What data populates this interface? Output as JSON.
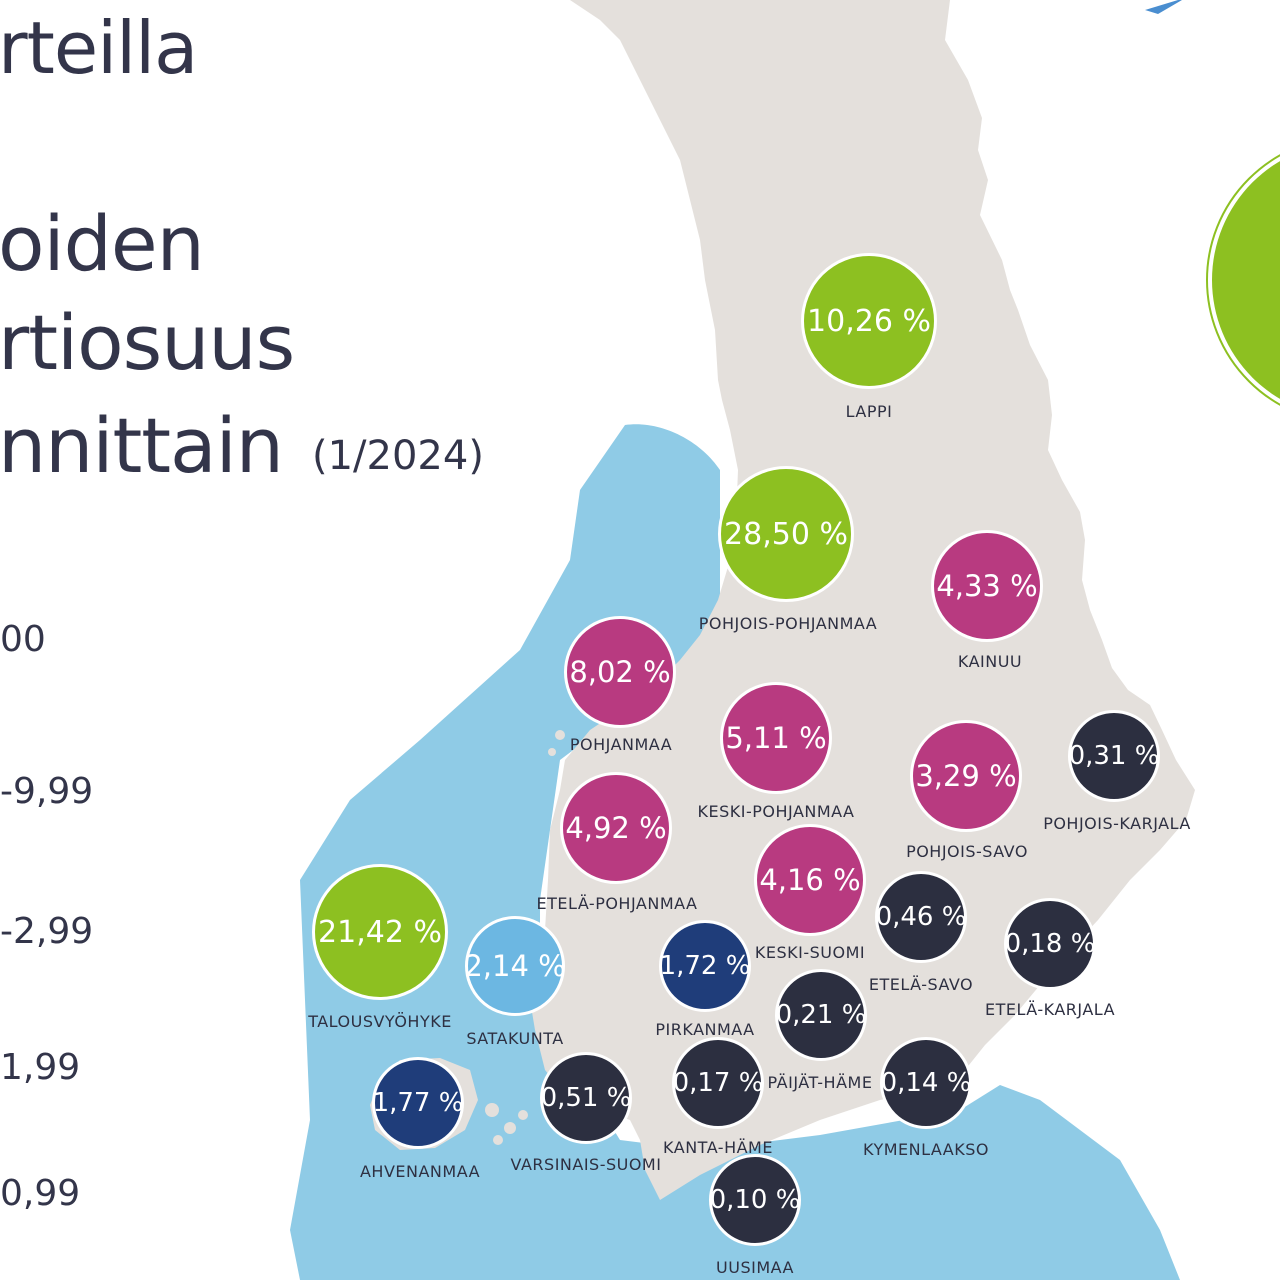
{
  "title": {
    "line1": "rteilla",
    "line2": "oiden",
    "line3": "rtiosuus",
    "line4": "nnittain",
    "date": "(1/2024)"
  },
  "legend": [
    "00",
    "-9,99",
    "-2,99",
    "1,99",
    "0,99"
  ],
  "colors": {
    "green": "#8dc021",
    "magenta": "#b83a80",
    "dark": "#2c2f40",
    "navy": "#1f3d7a",
    "light_blue": "#6cb7e2",
    "sea": "#8fcbe6",
    "land": "#e4e0dc",
    "text": "#2e3042"
  },
  "regions": [
    {
      "name": "LAPPI",
      "value": "10,26 %",
      "color": "green"
    },
    {
      "name": "POHJOIS-POHJANMAA",
      "value": "28,50 %",
      "color": "green"
    },
    {
      "name": "KAINUU",
      "value": "4,33 %",
      "color": "magenta"
    },
    {
      "name": "POHJANMAA",
      "value": "8,02 %",
      "color": "magenta"
    },
    {
      "name": "KESKI-POHJANMAA",
      "value": "5,11 %",
      "color": "magenta"
    },
    {
      "name": "POHJOIS-SAVO",
      "value": "3,29 %",
      "color": "magenta"
    },
    {
      "name": "POHJOIS-KARJALA",
      "value": "0,31 %",
      "color": "dark"
    },
    {
      "name": "ETELÄ-POHJANMAA",
      "value": "4,92 %",
      "color": "magenta"
    },
    {
      "name": "KESKI-SUOMI",
      "value": "4,16 %",
      "color": "magenta"
    },
    {
      "name": "ETELÄ-SAVO",
      "value": "0,46 %",
      "color": "dark"
    },
    {
      "name": "ETELÄ-KARJALA",
      "value": "0,18 %",
      "color": "dark"
    },
    {
      "name": "TALOUSVYÖHYKE",
      "value": "21,42 %",
      "color": "green"
    },
    {
      "name": "SATAKUNTA",
      "value": "2,14 %",
      "color": "light_blue"
    },
    {
      "name": "PIRKANMAA",
      "value": "1,72 %",
      "color": "navy"
    },
    {
      "name": "PÄIJÄT-HÄME",
      "value": "0,21 %",
      "color": "dark"
    },
    {
      "name": "AHVENANMAA",
      "value": "1,77 %",
      "color": "navy"
    },
    {
      "name": "VARSINAIS-SUOMI",
      "value": "0,51 %",
      "color": "dark"
    },
    {
      "name": "KANTA-HÄME",
      "value": "0,17 %",
      "color": "dark"
    },
    {
      "name": "KYMENLAAKSO",
      "value": "0,14 %",
      "color": "dark"
    },
    {
      "name": "UUSIMAA",
      "value": "0,10 %",
      "color": "dark"
    }
  ]
}
